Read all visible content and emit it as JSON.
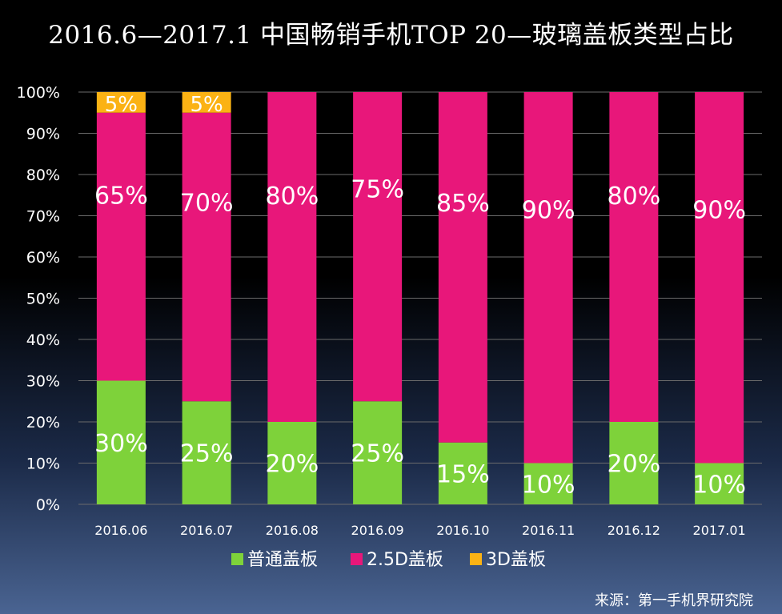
{
  "chart_data": {
    "type": "bar",
    "stacked": true,
    "title": "2016.6—2017.1 中国畅销手机TOP 20—玻璃盖板类型占比",
    "categories": [
      "2016.06",
      "2016.07",
      "2016.08",
      "2016.09",
      "2016.10",
      "2016.11",
      "2016.12",
      "2017.01"
    ],
    "series": [
      {
        "name": "普通盖板",
        "color": "#7ed23a",
        "values": [
          30,
          25,
          20,
          25,
          15,
          10,
          20,
          10
        ]
      },
      {
        "name": "2.5D盖板",
        "color": "#e8177a",
        "values": [
          65,
          70,
          80,
          75,
          85,
          90,
          80,
          90
        ]
      },
      {
        "name": "3D盖板",
        "color": "#fbb214",
        "values": [
          5,
          5,
          0,
          0,
          0,
          0,
          0,
          0
        ]
      }
    ],
    "data_labels": [
      [
        "30%",
        "25%",
        "20%",
        "25%",
        "15%",
        "10%",
        "20%",
        "10%"
      ],
      [
        "65%",
        "70%",
        "80%",
        "75%",
        "85%",
        "90%",
        "80%",
        "90%"
      ],
      [
        "5%",
        "5%",
        "",
        "",
        "",
        "",
        "",
        ""
      ]
    ],
    "yticks": [
      "0%",
      "10%",
      "20%",
      "30%",
      "40%",
      "50%",
      "60%",
      "70%",
      "80%",
      "90%",
      "100%"
    ],
    "ylim": [
      0,
      100
    ],
    "xlabel": "",
    "ylabel": "",
    "grid": true,
    "legend": "bottom"
  },
  "source": "来源：第一手机界研究院"
}
